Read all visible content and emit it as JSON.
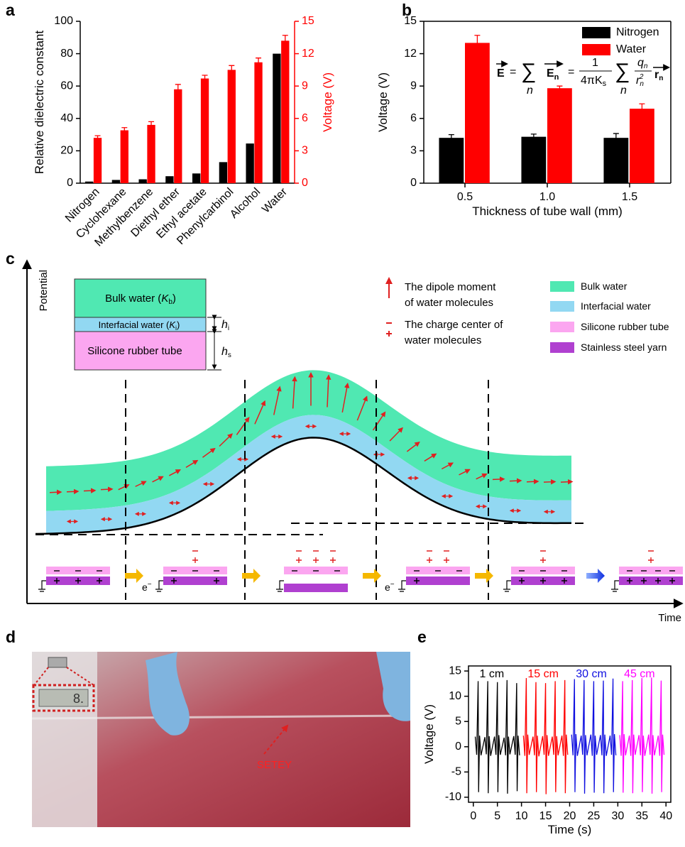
{
  "chart_data": [
    {
      "type": "bar",
      "label": "a",
      "categories": [
        "Nitrogen",
        "Cyclohexane",
        "Methylbenzene",
        "Diethyl ether",
        "Ethyl acetate",
        "Phenylcarbinol",
        "Alcohol",
        "Water"
      ],
      "series": [
        {
          "color": "#000000",
          "values": [
            1,
            2,
            2.4,
            4.3,
            6,
            13,
            24.5,
            80
          ]
        },
        {
          "color": "#ff0000",
          "axis": "y2",
          "values": [
            4.2,
            4.9,
            5.4,
            8.7,
            9.7,
            10.5,
            11.2,
            13.2
          ],
          "errors": [
            0.2,
            0.25,
            0.3,
            0.45,
            0.3,
            0.4,
            0.4,
            0.5
          ]
        }
      ],
      "ylabel": "Relative dielectric constant",
      "y2label": "Voltage (V)",
      "ylim": [
        0,
        100
      ],
      "yticks": [
        0,
        20,
        40,
        60,
        80,
        100
      ],
      "y2lim": [
        0,
        15
      ],
      "y2ticks": [
        0,
        3,
        6,
        9,
        12,
        15
      ]
    },
    {
      "type": "bar",
      "label": "b",
      "categories": [
        "0.5",
        "1.0",
        "1.5"
      ],
      "series": [
        {
          "name": "Nitrogen",
          "color": "#000000",
          "values": [
            4.2,
            4.3,
            4.2
          ],
          "errors": [
            0.3,
            0.25,
            0.4
          ]
        },
        {
          "name": "Water",
          "color": "#ff0000",
          "values": [
            13.0,
            8.8,
            6.9
          ],
          "errors": [
            0.7,
            0.2,
            0.45
          ]
        }
      ],
      "xlabel": "Thickness of tube wall (mm)",
      "ylabel": "Voltage (V)",
      "ylim": [
        0,
        15
      ],
      "yticks": [
        0,
        3,
        6,
        9,
        12,
        15
      ],
      "legend": "upper right",
      "formula": {
        "field": "E",
        "equals": "=",
        "sum": "∑",
        "index": "n",
        "term": "E",
        "term_sub": "n",
        "one": "1",
        "denominator": "4πK",
        "denominator_sub": "s",
        "charge": "q",
        "charge_sub": "n",
        "distance": "r",
        "distance_sub": "n",
        "distance_sup": "2",
        "unit": "r",
        "unit_sub": "n"
      }
    },
    {
      "type": "line",
      "label": "e",
      "series": [
        {
          "name": "1 cm",
          "color": "#000000",
          "x": [
            0.4,
            0.7,
            1,
            1.1,
            1.3,
            1.6,
            2.4,
            2.7,
            3,
            3.1,
            3.3,
            3.6,
            4.4,
            4.7,
            5,
            5.1,
            5.3,
            5.6,
            6.4,
            6.7,
            7,
            7.1,
            7.3,
            7.6,
            8.4,
            8.7,
            9,
            9.1,
            9.3,
            9.6
          ],
          "values": [
            2,
            -1.6,
            13,
            -9,
            2.2,
            -1.7,
            1.9,
            -1.5,
            13,
            -9.2,
            2.1,
            -1.8,
            2,
            -1.6,
            12.8,
            -9,
            2.3,
            -1.6,
            1.8,
            -1.7,
            13.2,
            -9.3,
            2,
            -1.5,
            2.1,
            -1.6,
            12.6,
            -8.8,
            2.2,
            -1.7
          ]
        },
        {
          "name": "15 cm",
          "color": "#ff0000",
          "x": [
            10.4,
            10.7,
            11,
            11.1,
            11.3,
            11.6,
            12.4,
            12.7,
            13,
            13.1,
            13.3,
            13.6,
            14.4,
            14.7,
            15,
            15.1,
            15.3,
            15.6,
            16.4,
            16.7,
            17,
            17.1,
            17.3,
            17.6,
            18.4,
            18.7,
            19,
            19.1,
            19.3,
            19.6
          ],
          "values": [
            2.2,
            -1.8,
            13.6,
            -9.2,
            2.4,
            -1.6,
            2,
            -1.7,
            12.8,
            -9,
            2.2,
            -1.9,
            2.1,
            -1.6,
            12.6,
            -9.4,
            2.3,
            -1.8,
            2,
            -1.6,
            13,
            -9,
            2.1,
            -1.7,
            2.2,
            -1.8,
            13.2,
            -9.2,
            2.4,
            -1.6
          ]
        },
        {
          "name": "30 cm",
          "color": "#1010e0",
          "x": [
            20.4,
            20.7,
            21,
            21.1,
            21.3,
            21.6,
            22.4,
            22.7,
            23,
            23.1,
            23.3,
            23.6,
            24.4,
            24.7,
            25,
            25.1,
            25.3,
            25.6,
            26.4,
            26.7,
            27,
            27.1,
            27.3,
            27.6,
            28.4,
            28.7,
            29,
            29.1,
            29.3,
            29.6
          ],
          "values": [
            2.4,
            -1.7,
            13.4,
            -9,
            2.5,
            -1.8,
            2.2,
            -1.6,
            13.2,
            -9.3,
            2.3,
            -1.7,
            2.4,
            -1.8,
            13,
            -9.1,
            2.2,
            -1.6,
            2.3,
            -1.7,
            13.1,
            -9.2,
            2.4,
            -1.8,
            2.2,
            -1.6,
            13.5,
            -9,
            2.5,
            -1.7
          ]
        },
        {
          "name": "45 cm",
          "color": "#ff00ff",
          "x": [
            30.4,
            30.7,
            31,
            31.1,
            31.3,
            31.6,
            32.4,
            32.7,
            33,
            33.1,
            33.3,
            33.6,
            34.4,
            34.7,
            35,
            35.1,
            35.3,
            35.6,
            36.4,
            36.7,
            37,
            37.1,
            37.3,
            37.6,
            38.4,
            38.7,
            39,
            39.1,
            39.3,
            39.6
          ],
          "values": [
            2.3,
            -1.8,
            13,
            -9.1,
            2.5,
            -1.7,
            2.2,
            -1.8,
            13.2,
            -9.2,
            2.4,
            -1.6,
            2.3,
            -1.7,
            13.6,
            -9,
            2.2,
            -1.8,
            2.4,
            -1.6,
            13.7,
            -9.3,
            2.3,
            -1.7,
            2.2,
            -1.8,
            13.1,
            -9,
            2.4,
            -1.6
          ]
        }
      ],
      "xlabel": "Time (s)",
      "ylabel": "Voltage (V)",
      "xlim": [
        -1,
        41
      ],
      "xticks": [
        0,
        5,
        10,
        15,
        20,
        25,
        30,
        35,
        40
      ],
      "ylim": [
        -11,
        16
      ],
      "yticks": [
        -10,
        -5,
        0,
        5,
        10,
        15
      ]
    }
  ],
  "diagram": {
    "label": "c",
    "y_axis": "Potential",
    "x_axis": "Time",
    "inset": {
      "bulk": [
        "Bulk water (",
        "K",
        "b",
        ")"
      ],
      "interfacial": [
        "Interfacial water (",
        "K",
        "i",
        ")"
      ],
      "tube": "Silicone rubber tube",
      "h_i": [
        "h",
        "i"
      ],
      "h_s": [
        "h",
        "s"
      ]
    },
    "symbols": {
      "dipole": [
        "The dipole moment",
        "of water molecules"
      ],
      "charge": [
        "The charge center of",
        "water molecules"
      ]
    },
    "legend": [
      "Bulk water",
      "Interfacial water",
      "Silicone rubber tube",
      "Stainless steel yarn"
    ],
    "electron": [
      "e",
      "−"
    ]
  },
  "photo": {
    "label": "d",
    "display": "8.",
    "marker": "SETEY"
  }
}
